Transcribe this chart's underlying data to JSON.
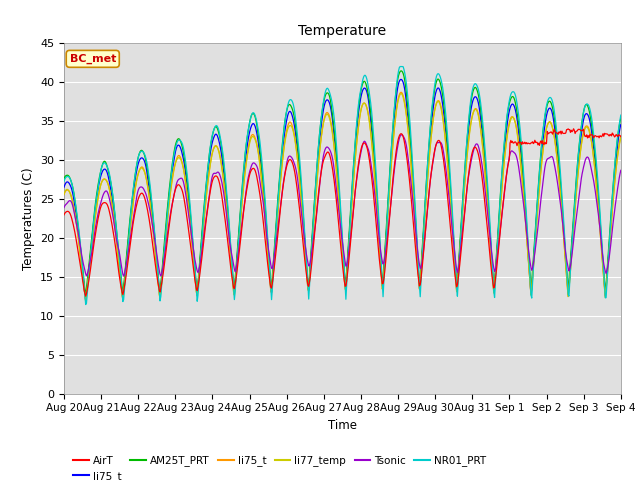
{
  "title": "Temperature",
  "ylabel": "Temperatures (C)",
  "xlabel": "Time",
  "ylim": [
    0,
    45
  ],
  "annotation_text": "BC_met",
  "legend_labels": [
    "AirT",
    "li75_t",
    "AM25T_PRT",
    "li75_t",
    "li77_temp",
    "Tsonic",
    "NR01_PRT"
  ],
  "legend_colors": [
    "#ff0000",
    "#0000ff",
    "#00bb00",
    "#ff9900",
    "#cccc00",
    "#9900cc",
    "#00cccc"
  ],
  "plot_bg_color": "#e0e0e0",
  "tick_labels": [
    "Aug 20",
    "Aug 21",
    "Aug 22",
    "Aug 23",
    "Aug 24",
    "Aug 25",
    "Aug 26",
    "Aug 27",
    "Aug 28",
    "Aug 29",
    "Aug 30",
    "Aug 31",
    "Sep 1",
    "Sep 2",
    "Sep 3",
    "Sep 4"
  ],
  "title_font_size": 10,
  "axis_font_size": 8,
  "tick_font_size": 7.5
}
